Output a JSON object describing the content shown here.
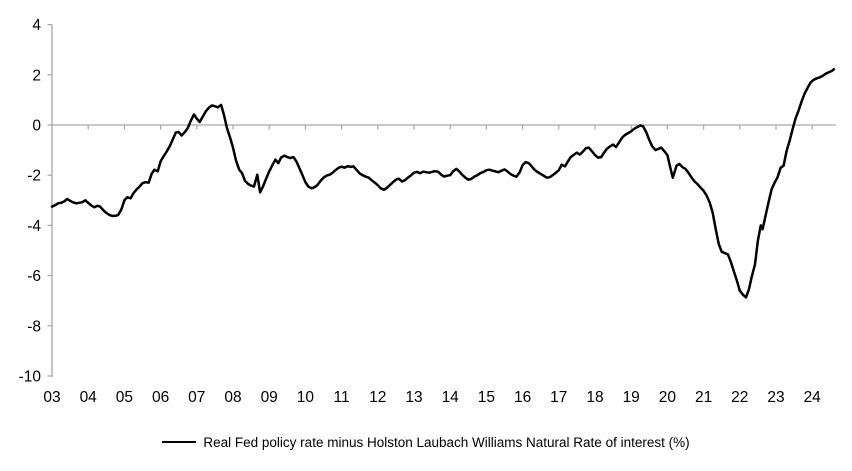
{
  "chart_data": {
    "type": "line",
    "title": "",
    "legend_label": "Real Fed policy rate minus Holston Laubach Williams Natural Rate of interest (%)",
    "legend_position": "bottom-center",
    "line_color": "#000000",
    "axis_color": "#a6a6a6",
    "text_color": "#000000",
    "grid": "zero-line-only",
    "ylim": [
      -10,
      4
    ],
    "xlim": [
      2003,
      2024.75
    ],
    "y_tick_labels": [
      "4",
      "2",
      "0",
      "-2",
      "-4",
      "-6",
      "-8",
      "-10"
    ],
    "y_tick_values": [
      4,
      2,
      0,
      -2,
      -4,
      -6,
      -8,
      -10
    ],
    "x_tick_labels": [
      "03",
      "04",
      "05",
      "06",
      "07",
      "08",
      "09",
      "10",
      "11",
      "12",
      "13",
      "14",
      "15",
      "16",
      "17",
      "18",
      "19",
      "20",
      "21",
      "22",
      "23",
      "24"
    ],
    "x_tick_years": [
      2003,
      2004,
      2005,
      2006,
      2007,
      2008,
      2009,
      2010,
      2011,
      2012,
      2013,
      2014,
      2015,
      2016,
      2017,
      2018,
      2019,
      2020,
      2021,
      2022,
      2023,
      2024
    ],
    "series": [
      {
        "name": "Real Fed policy rate minus Holston Laubach Williams Natural Rate of interest (%)",
        "points": [
          [
            2003.0,
            -3.25
          ],
          [
            2003.08,
            -3.2
          ],
          [
            2003.17,
            -3.12
          ],
          [
            2003.25,
            -3.1
          ],
          [
            2003.33,
            -3.05
          ],
          [
            2003.42,
            -2.95
          ],
          [
            2003.5,
            -3.02
          ],
          [
            2003.58,
            -3.08
          ],
          [
            2003.67,
            -3.12
          ],
          [
            2003.75,
            -3.1
          ],
          [
            2003.83,
            -3.08
          ],
          [
            2003.92,
            -3.0
          ],
          [
            2004.0,
            -3.1
          ],
          [
            2004.08,
            -3.2
          ],
          [
            2004.17,
            -3.28
          ],
          [
            2004.25,
            -3.22
          ],
          [
            2004.33,
            -3.25
          ],
          [
            2004.42,
            -3.4
          ],
          [
            2004.5,
            -3.5
          ],
          [
            2004.58,
            -3.58
          ],
          [
            2004.67,
            -3.62
          ],
          [
            2004.75,
            -3.62
          ],
          [
            2004.83,
            -3.58
          ],
          [
            2004.92,
            -3.35
          ],
          [
            2005.0,
            -3.0
          ],
          [
            2005.08,
            -2.88
          ],
          [
            2005.17,
            -2.92
          ],
          [
            2005.25,
            -2.72
          ],
          [
            2005.33,
            -2.58
          ],
          [
            2005.42,
            -2.45
          ],
          [
            2005.5,
            -2.32
          ],
          [
            2005.58,
            -2.28
          ],
          [
            2005.67,
            -2.3
          ],
          [
            2005.75,
            -1.95
          ],
          [
            2005.83,
            -1.78
          ],
          [
            2005.92,
            -1.85
          ],
          [
            2006.0,
            -1.45
          ],
          [
            2006.08,
            -1.25
          ],
          [
            2006.17,
            -1.05
          ],
          [
            2006.25,
            -0.85
          ],
          [
            2006.33,
            -0.6
          ],
          [
            2006.42,
            -0.3
          ],
          [
            2006.5,
            -0.28
          ],
          [
            2006.58,
            -0.42
          ],
          [
            2006.67,
            -0.28
          ],
          [
            2006.75,
            -0.12
          ],
          [
            2006.83,
            0.15
          ],
          [
            2006.92,
            0.42
          ],
          [
            2007.0,
            0.25
          ],
          [
            2007.08,
            0.12
          ],
          [
            2007.17,
            0.35
          ],
          [
            2007.25,
            0.55
          ],
          [
            2007.33,
            0.68
          ],
          [
            2007.42,
            0.78
          ],
          [
            2007.5,
            0.75
          ],
          [
            2007.58,
            0.7
          ],
          [
            2007.67,
            0.8
          ],
          [
            2007.75,
            0.4
          ],
          [
            2007.83,
            -0.1
          ],
          [
            2007.92,
            -0.5
          ],
          [
            2008.0,
            -0.9
          ],
          [
            2008.08,
            -1.4
          ],
          [
            2008.17,
            -1.78
          ],
          [
            2008.25,
            -1.92
          ],
          [
            2008.33,
            -2.22
          ],
          [
            2008.42,
            -2.35
          ],
          [
            2008.5,
            -2.42
          ],
          [
            2008.58,
            -2.45
          ],
          [
            2008.67,
            -1.98
          ],
          [
            2008.75,
            -2.68
          ],
          [
            2008.83,
            -2.45
          ],
          [
            2008.92,
            -2.12
          ],
          [
            2009.0,
            -1.85
          ],
          [
            2009.08,
            -1.62
          ],
          [
            2009.17,
            -1.38
          ],
          [
            2009.25,
            -1.52
          ],
          [
            2009.33,
            -1.3
          ],
          [
            2009.42,
            -1.22
          ],
          [
            2009.5,
            -1.28
          ],
          [
            2009.58,
            -1.32
          ],
          [
            2009.67,
            -1.28
          ],
          [
            2009.75,
            -1.45
          ],
          [
            2009.83,
            -1.7
          ],
          [
            2009.92,
            -2.0
          ],
          [
            2010.0,
            -2.28
          ],
          [
            2010.08,
            -2.45
          ],
          [
            2010.17,
            -2.52
          ],
          [
            2010.25,
            -2.48
          ],
          [
            2010.33,
            -2.4
          ],
          [
            2010.42,
            -2.22
          ],
          [
            2010.5,
            -2.1
          ],
          [
            2010.58,
            -2.02
          ],
          [
            2010.67,
            -1.98
          ],
          [
            2010.75,
            -1.9
          ],
          [
            2010.83,
            -1.8
          ],
          [
            2010.92,
            -1.7
          ],
          [
            2011.0,
            -1.66
          ],
          [
            2011.08,
            -1.7
          ],
          [
            2011.17,
            -1.64
          ],
          [
            2011.25,
            -1.67
          ],
          [
            2011.33,
            -1.65
          ],
          [
            2011.42,
            -1.8
          ],
          [
            2011.5,
            -1.93
          ],
          [
            2011.58,
            -2.0
          ],
          [
            2011.67,
            -2.06
          ],
          [
            2011.75,
            -2.1
          ],
          [
            2011.83,
            -2.2
          ],
          [
            2011.92,
            -2.3
          ],
          [
            2012.0,
            -2.4
          ],
          [
            2012.08,
            -2.52
          ],
          [
            2012.17,
            -2.58
          ],
          [
            2012.25,
            -2.5
          ],
          [
            2012.33,
            -2.4
          ],
          [
            2012.42,
            -2.28
          ],
          [
            2012.5,
            -2.18
          ],
          [
            2012.58,
            -2.14
          ],
          [
            2012.67,
            -2.25
          ],
          [
            2012.75,
            -2.2
          ],
          [
            2012.83,
            -2.1
          ],
          [
            2012.92,
            -2.0
          ],
          [
            2013.0,
            -1.9
          ],
          [
            2013.08,
            -1.87
          ],
          [
            2013.17,
            -1.92
          ],
          [
            2013.25,
            -1.86
          ],
          [
            2013.33,
            -1.88
          ],
          [
            2013.42,
            -1.9
          ],
          [
            2013.5,
            -1.87
          ],
          [
            2013.58,
            -1.84
          ],
          [
            2013.67,
            -1.87
          ],
          [
            2013.75,
            -1.98
          ],
          [
            2013.83,
            -2.05
          ],
          [
            2013.92,
            -2.02
          ],
          [
            2014.0,
            -2.0
          ],
          [
            2014.08,
            -1.85
          ],
          [
            2014.17,
            -1.75
          ],
          [
            2014.25,
            -1.85
          ],
          [
            2014.33,
            -1.98
          ],
          [
            2014.42,
            -2.1
          ],
          [
            2014.5,
            -2.18
          ],
          [
            2014.58,
            -2.15
          ],
          [
            2014.67,
            -2.05
          ],
          [
            2014.75,
            -2.0
          ],
          [
            2014.83,
            -1.92
          ],
          [
            2014.92,
            -1.87
          ],
          [
            2015.0,
            -1.8
          ],
          [
            2015.08,
            -1.78
          ],
          [
            2015.17,
            -1.82
          ],
          [
            2015.25,
            -1.85
          ],
          [
            2015.33,
            -1.88
          ],
          [
            2015.42,
            -1.82
          ],
          [
            2015.5,
            -1.77
          ],
          [
            2015.58,
            -1.85
          ],
          [
            2015.67,
            -1.96
          ],
          [
            2015.75,
            -2.02
          ],
          [
            2015.83,
            -2.06
          ],
          [
            2015.92,
            -1.88
          ],
          [
            2016.0,
            -1.6
          ],
          [
            2016.08,
            -1.48
          ],
          [
            2016.17,
            -1.52
          ],
          [
            2016.25,
            -1.65
          ],
          [
            2016.33,
            -1.78
          ],
          [
            2016.42,
            -1.88
          ],
          [
            2016.5,
            -1.95
          ],
          [
            2016.58,
            -2.02
          ],
          [
            2016.67,
            -2.1
          ],
          [
            2016.75,
            -2.08
          ],
          [
            2016.83,
            -2.0
          ],
          [
            2016.92,
            -1.9
          ],
          [
            2017.0,
            -1.8
          ],
          [
            2017.08,
            -1.58
          ],
          [
            2017.17,
            -1.65
          ],
          [
            2017.25,
            -1.45
          ],
          [
            2017.33,
            -1.28
          ],
          [
            2017.42,
            -1.18
          ],
          [
            2017.5,
            -1.1
          ],
          [
            2017.58,
            -1.18
          ],
          [
            2017.67,
            -1.05
          ],
          [
            2017.75,
            -0.92
          ],
          [
            2017.83,
            -0.9
          ],
          [
            2017.92,
            -1.05
          ],
          [
            2018.0,
            -1.2
          ],
          [
            2018.08,
            -1.3
          ],
          [
            2018.17,
            -1.28
          ],
          [
            2018.25,
            -1.1
          ],
          [
            2018.33,
            -0.95
          ],
          [
            2018.42,
            -0.85
          ],
          [
            2018.5,
            -0.78
          ],
          [
            2018.58,
            -0.88
          ],
          [
            2018.67,
            -0.68
          ],
          [
            2018.75,
            -0.5
          ],
          [
            2018.83,
            -0.4
          ],
          [
            2018.92,
            -0.32
          ],
          [
            2019.0,
            -0.25
          ],
          [
            2019.08,
            -0.15
          ],
          [
            2019.17,
            -0.08
          ],
          [
            2019.25,
            -0.02
          ],
          [
            2019.33,
            -0.05
          ],
          [
            2019.42,
            -0.3
          ],
          [
            2019.5,
            -0.6
          ],
          [
            2019.58,
            -0.85
          ],
          [
            2019.67,
            -1.0
          ],
          [
            2019.75,
            -0.95
          ],
          [
            2019.83,
            -0.9
          ],
          [
            2019.92,
            -1.05
          ],
          [
            2020.0,
            -1.2
          ],
          [
            2020.08,
            -1.7
          ],
          [
            2020.15,
            -2.1
          ],
          [
            2020.25,
            -1.62
          ],
          [
            2020.33,
            -1.55
          ],
          [
            2020.42,
            -1.68
          ],
          [
            2020.5,
            -1.75
          ],
          [
            2020.58,
            -1.9
          ],
          [
            2020.67,
            -2.1
          ],
          [
            2020.75,
            -2.25
          ],
          [
            2020.83,
            -2.35
          ],
          [
            2020.92,
            -2.5
          ],
          [
            2021.0,
            -2.62
          ],
          [
            2021.08,
            -2.8
          ],
          [
            2021.17,
            -3.1
          ],
          [
            2021.25,
            -3.5
          ],
          [
            2021.33,
            -4.1
          ],
          [
            2021.42,
            -4.75
          ],
          [
            2021.5,
            -5.05
          ],
          [
            2021.58,
            -5.1
          ],
          [
            2021.67,
            -5.15
          ],
          [
            2021.75,
            -5.45
          ],
          [
            2021.83,
            -5.8
          ],
          [
            2021.92,
            -6.2
          ],
          [
            2022.0,
            -6.6
          ],
          [
            2022.08,
            -6.75
          ],
          [
            2022.17,
            -6.87
          ],
          [
            2022.25,
            -6.55
          ],
          [
            2022.33,
            -6.05
          ],
          [
            2022.42,
            -5.55
          ],
          [
            2022.5,
            -4.6
          ],
          [
            2022.58,
            -4.0
          ],
          [
            2022.63,
            -4.15
          ],
          [
            2022.7,
            -3.7
          ],
          [
            2022.79,
            -3.1
          ],
          [
            2022.88,
            -2.55
          ],
          [
            2022.96,
            -2.3
          ],
          [
            2023.04,
            -2.1
          ],
          [
            2023.13,
            -1.7
          ],
          [
            2023.21,
            -1.62
          ],
          [
            2023.29,
            -1.05
          ],
          [
            2023.38,
            -0.6
          ],
          [
            2023.46,
            -0.15
          ],
          [
            2023.54,
            0.25
          ],
          [
            2023.63,
            0.6
          ],
          [
            2023.71,
            0.95
          ],
          [
            2023.79,
            1.25
          ],
          [
            2023.88,
            1.5
          ],
          [
            2023.96,
            1.7
          ],
          [
            2024.04,
            1.8
          ],
          [
            2024.13,
            1.86
          ],
          [
            2024.21,
            1.9
          ],
          [
            2024.29,
            1.96
          ],
          [
            2024.38,
            2.05
          ],
          [
            2024.46,
            2.1
          ],
          [
            2024.54,
            2.15
          ],
          [
            2024.6,
            2.22
          ]
        ]
      }
    ]
  }
}
